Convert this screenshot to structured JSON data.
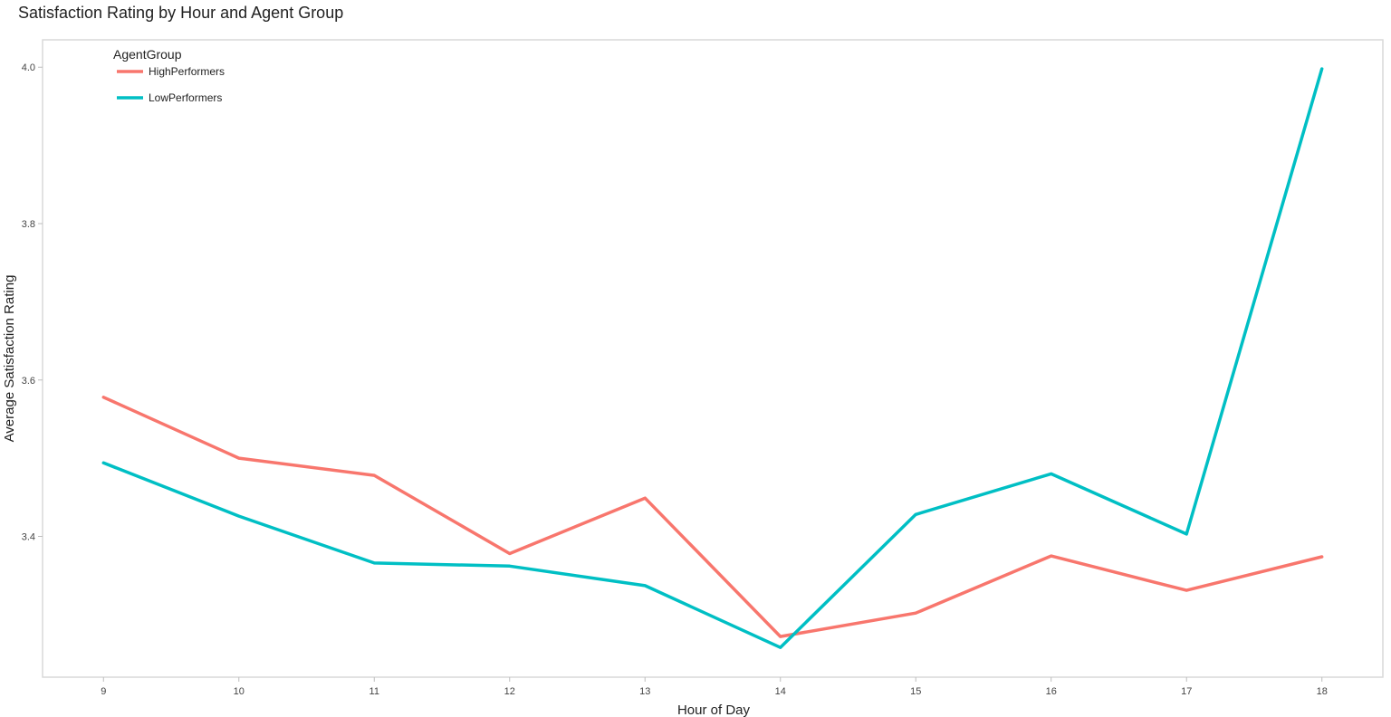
{
  "chart_data": {
    "type": "line",
    "title": "Satisfaction Rating by Hour and Agent Group",
    "xlabel": "Hour of Day",
    "ylabel": "Average Satisfaction Rating",
    "x": [
      9,
      10,
      11,
      12,
      13,
      14,
      15,
      16,
      17,
      18
    ],
    "xlim": [
      8.55,
      18.45
    ],
    "ylim": [
      3.22,
      4.035
    ],
    "yticks": [
      3.4,
      3.6,
      3.8,
      4.0
    ],
    "ytick_labels": [
      "3.4",
      "3.6",
      "3.8",
      "4.0"
    ],
    "legend_title": "AgentGroup",
    "legend_position": "top-left",
    "grid": false,
    "series": [
      {
        "name": "HighPerformers",
        "color": "#F8766D",
        "values": [
          3.578,
          3.5,
          3.478,
          3.378,
          3.449,
          3.272,
          3.302,
          3.375,
          3.331,
          3.374
        ]
      },
      {
        "name": "LowPerformers",
        "color": "#00BFC4",
        "values": [
          3.494,
          3.426,
          3.366,
          3.362,
          3.337,
          3.258,
          3.428,
          3.48,
          3.403,
          3.998
        ]
      }
    ]
  }
}
